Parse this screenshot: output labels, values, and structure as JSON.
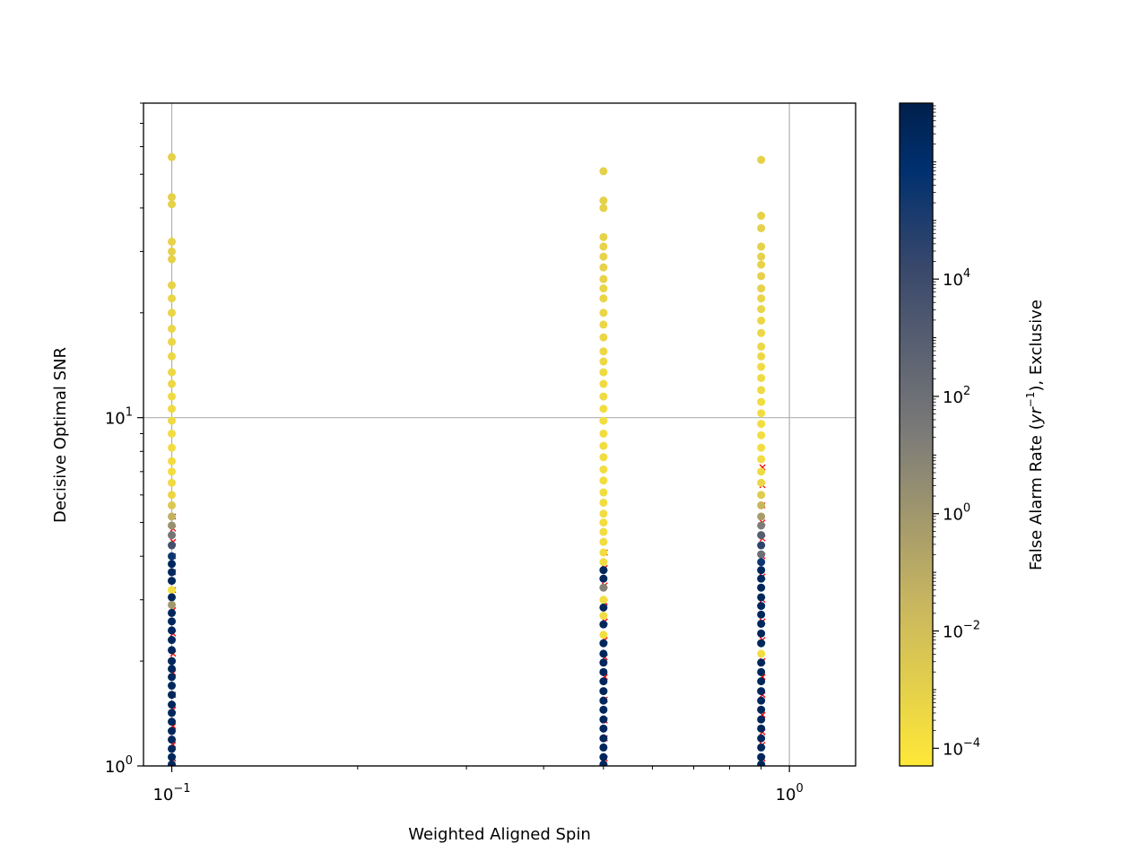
{
  "chart_data": {
    "type": "scatter",
    "xlabel": "Weighted Aligned Spin",
    "ylabel": "Decisive Optimal SNR",
    "xscale": "log",
    "yscale": "log",
    "xlim": [
      0.09,
      1.28
    ],
    "ylim": [
      1,
      80
    ],
    "grid": true,
    "x_ticks": [
      {
        "value": 0.1,
        "base": "10",
        "exp": "−1"
      },
      {
        "value": 1,
        "base": "10",
        "exp": "0"
      }
    ],
    "y_ticks": [
      {
        "value": 1,
        "base": "10",
        "exp": "0"
      },
      {
        "value": 10,
        "base": "10",
        "exp": "1"
      }
    ],
    "colorbar": {
      "label_prefix": "False Alarm Rate (",
      "label_var": "yr",
      "label_exp": "−1",
      "label_suffix": "), Exclusive",
      "scale": "log",
      "range": [
        5e-05,
        10000000
      ],
      "colormap": "cividis_r",
      "ticks": [
        {
          "value": 0.0001,
          "base": "10",
          "exp": "−4"
        },
        {
          "value": 0.01,
          "base": "10",
          "exp": "−2"
        },
        {
          "value": 1,
          "base": "10",
          "exp": "0"
        },
        {
          "value": 100,
          "base": "10",
          "exp": "2"
        },
        {
          "value": 10000,
          "base": "10",
          "exp": "4"
        }
      ]
    },
    "missed_marker_color": "#ff0000",
    "columns": [
      {
        "x": 0.1,
        "points": [
          {
            "snr": 56,
            "far": 0.001
          },
          {
            "snr": 43,
            "far": 0.001
          },
          {
            "snr": 41,
            "far": 0.001
          },
          {
            "snr": 32,
            "far": 0.0008
          },
          {
            "snr": 30,
            "far": 0.001
          },
          {
            "snr": 28.5,
            "far": 0.001
          },
          {
            "snr": 24,
            "far": 0.0008
          },
          {
            "snr": 22,
            "far": 0.0006
          },
          {
            "snr": 20,
            "far": 0.0006
          },
          {
            "snr": 18,
            "far": 0.0005
          },
          {
            "snr": 16.5,
            "far": 0.0005
          },
          {
            "snr": 15,
            "far": 0.0005
          },
          {
            "snr": 13.5,
            "far": 0.0004
          },
          {
            "snr": 12.5,
            "far": 0.0004
          },
          {
            "snr": 11.5,
            "far": 0.0003
          },
          {
            "snr": 10.6,
            "far": 0.0003
          },
          {
            "snr": 9.8,
            "far": 0.0003
          },
          {
            "snr": 9.0,
            "far": 0.0002
          },
          {
            "snr": 8.2,
            "far": 0.0002
          },
          {
            "snr": 7.5,
            "far": 0.0002
          },
          {
            "snr": 7.0,
            "far": 0.0002
          },
          {
            "snr": 6.5,
            "far": 0.0003
          },
          {
            "snr": 6.0,
            "far": 0.0005
          },
          {
            "snr": 5.6,
            "far": 0.003
          },
          {
            "snr": 5.2,
            "far": 0.05
          },
          {
            "snr": 4.9,
            "far": 2
          },
          {
            "snr": 4.6,
            "far": 50
          },
          {
            "snr": 4.3,
            "far": 5000
          },
          {
            "snr": 4.0,
            "far": 300000
          },
          {
            "snr": 3.8,
            "far": 3000000
          },
          {
            "snr": 3.6,
            "far": 3000000
          },
          {
            "snr": 3.4,
            "far": 3000000
          },
          {
            "snr": 3.2,
            "far": 0.0002
          },
          {
            "snr": 3.05,
            "far": 3000000
          },
          {
            "snr": 2.9,
            "far": 1
          },
          {
            "snr": 2.75,
            "far": 3000000
          },
          {
            "snr": 2.6,
            "far": 3000000
          },
          {
            "snr": 2.45,
            "far": 3000000
          },
          {
            "snr": 2.3,
            "far": 3000000
          },
          {
            "snr": 2.15,
            "far": 3000000
          },
          {
            "snr": 2.0,
            "far": 3000000
          },
          {
            "snr": 1.9,
            "far": 3000000
          },
          {
            "snr": 1.8,
            "far": 3000000
          },
          {
            "snr": 1.7,
            "far": 3000000
          },
          {
            "snr": 1.6,
            "far": 3000000
          },
          {
            "snr": 1.5,
            "far": 3000000
          },
          {
            "snr": 1.42,
            "far": 3000000
          },
          {
            "snr": 1.34,
            "far": 3000000
          },
          {
            "snr": 1.26,
            "far": 3000000
          },
          {
            "snr": 1.19,
            "far": 3000000
          },
          {
            "snr": 1.12,
            "far": 3000000
          },
          {
            "snr": 1.06,
            "far": 3000000
          },
          {
            "snr": 1.01,
            "far": 3000000
          }
        ]
      },
      {
        "x": 0.5,
        "points": [
          {
            "snr": 51,
            "far": 0.001
          },
          {
            "snr": 42,
            "far": 0.001
          },
          {
            "snr": 40,
            "far": 0.001
          },
          {
            "snr": 33,
            "far": 0.0008
          },
          {
            "snr": 31,
            "far": 0.0008
          },
          {
            "snr": 29,
            "far": 0.0008
          },
          {
            "snr": 27,
            "far": 0.0008
          },
          {
            "snr": 25,
            "far": 0.0008
          },
          {
            "snr": 23.5,
            "far": 0.0006
          },
          {
            "snr": 22,
            "far": 0.0006
          },
          {
            "snr": 20,
            "far": 0.0006
          },
          {
            "snr": 18.5,
            "far": 0.0005
          },
          {
            "snr": 17,
            "far": 0.0005
          },
          {
            "snr": 15.5,
            "far": 0.0004
          },
          {
            "snr": 14.5,
            "far": 0.0004
          },
          {
            "snr": 13.5,
            "far": 0.0003
          },
          {
            "snr": 12.5,
            "far": 0.0003
          },
          {
            "snr": 11.5,
            "far": 0.0003
          },
          {
            "snr": 10.6,
            "far": 0.0002
          },
          {
            "snr": 9.8,
            "far": 0.0002
          },
          {
            "snr": 9.0,
            "far": 0.0002
          },
          {
            "snr": 8.3,
            "far": 0.0002
          },
          {
            "snr": 7.7,
            "far": 0.0002
          },
          {
            "snr": 7.1,
            "far": 0.0002
          },
          {
            "snr": 6.6,
            "far": 0.0002
          },
          {
            "snr": 6.1,
            "far": 0.0002
          },
          {
            "snr": 5.7,
            "far": 0.0002
          },
          {
            "snr": 5.3,
            "far": 0.0002
          },
          {
            "snr": 5.0,
            "far": 0.0002
          },
          {
            "snr": 4.7,
            "far": 0.0002
          },
          {
            "snr": 4.4,
            "far": 0.0002
          },
          {
            "snr": 4.1,
            "far": 0.0002
          },
          {
            "snr": 3.85,
            "far": 0.0002
          },
          {
            "snr": 3.65,
            "far": 3000000
          },
          {
            "snr": 3.45,
            "far": 3000000
          },
          {
            "snr": 3.25,
            "far": 10
          },
          {
            "snr": 3.0,
            "far": 0.0002
          },
          {
            "snr": 2.85,
            "far": 3000000
          },
          {
            "snr": 2.7,
            "far": 0.0002
          },
          {
            "snr": 2.55,
            "far": 3000000
          },
          {
            "snr": 2.38,
            "far": 0.0002
          },
          {
            "snr": 2.25,
            "far": 3000000
          },
          {
            "snr": 2.1,
            "far": 3000000
          },
          {
            "snr": 1.98,
            "far": 3000000
          },
          {
            "snr": 1.86,
            "far": 3000000
          },
          {
            "snr": 1.75,
            "far": 3000000
          },
          {
            "snr": 1.64,
            "far": 3000000
          },
          {
            "snr": 1.54,
            "far": 3000000
          },
          {
            "snr": 1.45,
            "far": 3000000
          },
          {
            "snr": 1.36,
            "far": 3000000
          },
          {
            "snr": 1.28,
            "far": 3000000
          },
          {
            "snr": 1.2,
            "far": 3000000
          },
          {
            "snr": 1.13,
            "far": 3000000
          },
          {
            "snr": 1.06,
            "far": 3000000
          },
          {
            "snr": 1.01,
            "far": 3000000
          }
        ]
      },
      {
        "x": 0.9,
        "points": [
          {
            "snr": 55,
            "far": 0.001
          },
          {
            "snr": 38,
            "far": 0.001
          },
          {
            "snr": 35,
            "far": 0.001
          },
          {
            "snr": 31,
            "far": 0.001
          },
          {
            "snr": 29,
            "far": 0.001
          },
          {
            "snr": 27.5,
            "far": 0.0008
          },
          {
            "snr": 25.5,
            "far": 0.001
          },
          {
            "snr": 23.5,
            "far": 0.0008
          },
          {
            "snr": 22,
            "far": 0.0006
          },
          {
            "snr": 20.5,
            "far": 0.0006
          },
          {
            "snr": 19,
            "far": 0.0005
          },
          {
            "snr": 17.5,
            "far": 0.0005
          },
          {
            "snr": 16,
            "far": 0.0004
          },
          {
            "snr": 15,
            "far": 0.0004
          },
          {
            "snr": 14,
            "far": 0.0003
          },
          {
            "snr": 13,
            "far": 0.0003
          },
          {
            "snr": 12,
            "far": 0.0003
          },
          {
            "snr": 11.1,
            "far": 0.0002
          },
          {
            "snr": 10.3,
            "far": 0.0002
          },
          {
            "snr": 9.6,
            "far": 0.0002
          },
          {
            "snr": 8.9,
            "far": 0.0002
          },
          {
            "snr": 8.2,
            "far": 0.0002
          },
          {
            "snr": 7.6,
            "far": 0.0002
          },
          {
            "snr": 7.0,
            "far": 0.0003
          },
          {
            "snr": 6.5,
            "far": 0.0005
          },
          {
            "snr": 6.0,
            "far": 0.002
          },
          {
            "snr": 5.6,
            "far": 0.03
          },
          {
            "snr": 5.2,
            "far": 0.5
          },
          {
            "snr": 4.9,
            "far": 20
          },
          {
            "snr": 4.6,
            "far": 1000
          },
          {
            "snr": 4.3,
            "far": 30000
          },
          {
            "snr": 4.05,
            "far": 100
          },
          {
            "snr": 3.85,
            "far": 300000
          },
          {
            "snr": 3.65,
            "far": 3000000
          },
          {
            "snr": 3.45,
            "far": 3000000
          },
          {
            "snr": 3.25,
            "far": 3000000
          },
          {
            "snr": 3.05,
            "far": 3000000
          },
          {
            "snr": 2.88,
            "far": 3000000
          },
          {
            "snr": 2.72,
            "far": 3000000
          },
          {
            "snr": 2.56,
            "far": 3000000
          },
          {
            "snr": 2.4,
            "far": 3000000
          },
          {
            "snr": 2.25,
            "far": 3000000
          },
          {
            "snr": 2.1,
            "far": 0.0002
          },
          {
            "snr": 1.98,
            "far": 3000000
          },
          {
            "snr": 1.86,
            "far": 3000000
          },
          {
            "snr": 1.75,
            "far": 3000000
          },
          {
            "snr": 1.64,
            "far": 3000000
          },
          {
            "snr": 1.54,
            "far": 3000000
          },
          {
            "snr": 1.45,
            "far": 3000000
          },
          {
            "snr": 1.36,
            "far": 3000000
          },
          {
            "snr": 1.28,
            "far": 3000000
          },
          {
            "snr": 1.2,
            "far": 3000000
          },
          {
            "snr": 1.13,
            "far": 3000000
          },
          {
            "snr": 1.06,
            "far": 3000000
          },
          {
            "snr": 1.01,
            "far": 3000000
          }
        ]
      }
    ],
    "missed": [
      {
        "x": 0.1,
        "snr": [
          1.05,
          1.15,
          1.3,
          1.45,
          1.6,
          1.85,
          2.1,
          2.4,
          2.8,
          3.2,
          3.6,
          4.0,
          4.4,
          4.8,
          5.2
        ]
      },
      {
        "x": 0.5,
        "snr": [
          1.05,
          1.2,
          1.35,
          1.55,
          1.8,
          2.05,
          2.3,
          2.6,
          2.95,
          3.3,
          3.7,
          4.1
        ]
      },
      {
        "x": 0.9,
        "snr": [
          1.05,
          1.15,
          1.25,
          1.4,
          1.6,
          1.8,
          2.0,
          2.3,
          2.6,
          3.0,
          3.5,
          4.0,
          4.5,
          5.0,
          5.6,
          6.4,
          7.2
        ]
      }
    ]
  }
}
